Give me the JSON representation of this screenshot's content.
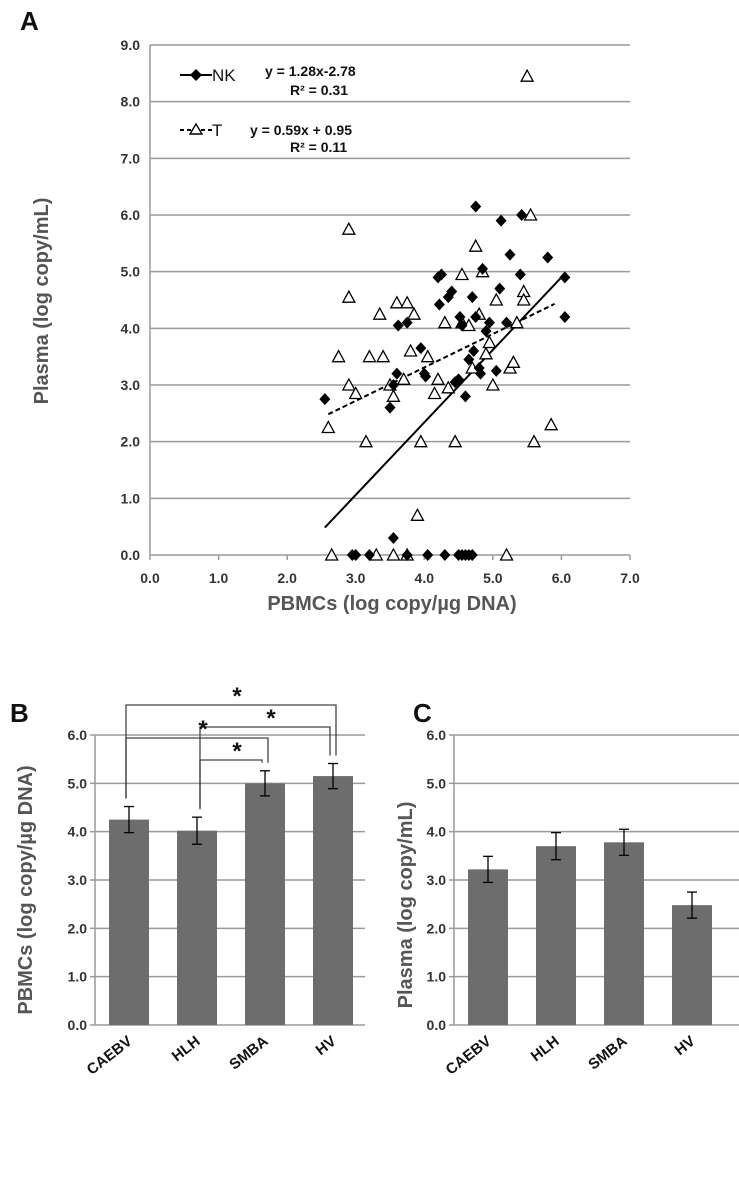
{
  "panels": {
    "a": "A",
    "b": "B",
    "c": "C"
  },
  "chart_data": [
    {
      "id": "A",
      "type": "scatter",
      "xlabel": "PBMCs (log copy/µg DNA)",
      "ylabel": "Plasma (log copy/mL)",
      "xlim": [
        0,
        7
      ],
      "ylim": [
        0,
        9
      ],
      "x_ticks": [
        "0.0",
        "1.0",
        "2.0",
        "3.0",
        "4.0",
        "5.0",
        "6.0",
        "7.0"
      ],
      "y_ticks": [
        "0.0",
        "1.0",
        "2.0",
        "3.0",
        "4.0",
        "5.0",
        "6.0",
        "7.0",
        "8.0",
        "9.0"
      ],
      "grid": "horizontal",
      "legend": "top-left",
      "series": [
        {
          "name": "NK",
          "marker": "diamond-filled",
          "color": "#000000",
          "equation": "y = 1.28x-2.78",
          "r2": "R² = 0.31",
          "trendline": {
            "slope": 1.28,
            "intercept": -2.78,
            "x_range": [
              2.55,
              6.05
            ],
            "style": "solid"
          },
          "points": [
            [
              2.55,
              2.75
            ],
            [
              3.5,
              2.6
            ],
            [
              3.55,
              3.0
            ],
            [
              3.6,
              3.2
            ],
            [
              3.62,
              4.05
            ],
            [
              3.75,
              4.1
            ],
            [
              3.95,
              3.65
            ],
            [
              4.0,
              3.2
            ],
            [
              4.02,
              3.15
            ],
            [
              4.2,
              4.9
            ],
            [
              4.22,
              4.42
            ],
            [
              4.25,
              4.95
            ],
            [
              4.35,
              4.55
            ],
            [
              4.4,
              4.65
            ],
            [
              4.45,
              3.05
            ],
            [
              4.5,
              3.1
            ],
            [
              4.52,
              4.2
            ],
            [
              4.55,
              4.05
            ],
            [
              4.6,
              2.8
            ],
            [
              4.65,
              3.45
            ],
            [
              4.7,
              4.55
            ],
            [
              4.72,
              3.6
            ],
            [
              4.75,
              4.2
            ],
            [
              4.75,
              6.15
            ],
            [
              4.8,
              3.3
            ],
            [
              4.82,
              3.2
            ],
            [
              4.85,
              5.05
            ],
            [
              4.9,
              3.95
            ],
            [
              4.95,
              4.1
            ],
            [
              5.05,
              3.25
            ],
            [
              5.1,
              4.7
            ],
            [
              5.12,
              5.9
            ],
            [
              5.2,
              4.1
            ],
            [
              5.25,
              5.3
            ],
            [
              5.4,
              4.95
            ],
            [
              5.42,
              6.0
            ],
            [
              5.8,
              5.25
            ],
            [
              6.05,
              4.9
            ],
            [
              6.05,
              4.2
            ],
            [
              3.55,
              0.3
            ],
            [
              2.95,
              0.0
            ],
            [
              3.0,
              0.0
            ],
            [
              3.2,
              0.0
            ],
            [
              3.75,
              0.0
            ],
            [
              4.05,
              0.0
            ],
            [
              4.3,
              0.0
            ],
            [
              4.5,
              0.0
            ],
            [
              4.55,
              0.0
            ],
            [
              4.6,
              0.0
            ],
            [
              4.65,
              0.0
            ],
            [
              4.7,
              0.0
            ]
          ]
        },
        {
          "name": "T",
          "marker": "triangle-open",
          "color": "#000000",
          "equation": "y = 0.59x + 0.95",
          "r2": "R² = 0.11",
          "trendline": {
            "slope": 0.59,
            "intercept": 0.95,
            "x_range": [
              2.6,
              5.9
            ],
            "style": "dashed"
          },
          "points": [
            [
              2.6,
              2.25
            ],
            [
              2.75,
              3.5
            ],
            [
              2.9,
              3.0
            ],
            [
              2.9,
              5.75
            ],
            [
              2.9,
              4.55
            ],
            [
              3.0,
              2.85
            ],
            [
              3.15,
              2.0
            ],
            [
              3.2,
              3.5
            ],
            [
              3.35,
              4.25
            ],
            [
              3.4,
              3.5
            ],
            [
              3.5,
              3.0
            ],
            [
              3.55,
              2.8
            ],
            [
              3.6,
              4.45
            ],
            [
              3.7,
              3.1
            ],
            [
              3.75,
              4.45
            ],
            [
              3.8,
              3.6
            ],
            [
              3.85,
              4.25
            ],
            [
              3.9,
              0.7
            ],
            [
              3.95,
              2.0
            ],
            [
              4.05,
              3.5
            ],
            [
              4.15,
              2.85
            ],
            [
              4.2,
              3.1
            ],
            [
              4.3,
              4.1
            ],
            [
              4.35,
              2.95
            ],
            [
              4.45,
              2.0
            ],
            [
              4.55,
              4.1
            ],
            [
              4.55,
              4.95
            ],
            [
              4.65,
              4.05
            ],
            [
              4.7,
              3.3
            ],
            [
              4.75,
              5.45
            ],
            [
              4.8,
              4.25
            ],
            [
              4.85,
              5.0
            ],
            [
              4.9,
              3.55
            ],
            [
              4.95,
              3.75
            ],
            [
              5.0,
              3.0
            ],
            [
              5.05,
              4.5
            ],
            [
              5.25,
              3.3
            ],
            [
              5.3,
              3.4
            ],
            [
              5.35,
              4.1
            ],
            [
              5.45,
              4.65
            ],
            [
              5.45,
              4.5
            ],
            [
              5.5,
              8.45
            ],
            [
              5.55,
              6.0
            ],
            [
              5.6,
              2.0
            ],
            [
              5.85,
              2.3
            ],
            [
              2.65,
              0.0
            ],
            [
              3.3,
              0.0
            ],
            [
              3.55,
              0.0
            ],
            [
              3.75,
              0.0
            ],
            [
              5.2,
              0.0
            ]
          ]
        }
      ]
    },
    {
      "id": "B",
      "type": "bar",
      "categories": [
        "CAEBV",
        "HLH",
        "SMBA",
        "HV"
      ],
      "values": [
        4.25,
        4.02,
        5.0,
        5.15
      ],
      "errors": [
        0.27,
        0.28,
        0.26,
        0.26
      ],
      "ylabel": "PBMCs (log copy/µg DNA)",
      "xlabel": "",
      "ylim": [
        0,
        6
      ],
      "y_ticks": [
        "0.0",
        "1.0",
        "2.0",
        "3.0",
        "4.0",
        "5.0",
        "6.0"
      ],
      "grid": "horizontal",
      "color": "#6d6d6d",
      "significance": [
        {
          "from": "CAEBV",
          "to": "HV",
          "label": "*"
        },
        {
          "from": "HLH",
          "to": "HV",
          "label": "*"
        },
        {
          "from": "CAEBV",
          "to": "SMBA",
          "label": "*"
        },
        {
          "from": "HLH",
          "to": "SMBA",
          "label": "*"
        }
      ]
    },
    {
      "id": "C",
      "type": "bar",
      "categories": [
        "CAEBV",
        "HLH",
        "SMBA",
        "HV"
      ],
      "values": [
        3.22,
        3.7,
        3.78,
        2.48
      ],
      "errors": [
        0.27,
        0.28,
        0.27,
        0.27
      ],
      "ylabel": "Plasma (log copy/mL)",
      "xlabel": "",
      "ylim": [
        0,
        6
      ],
      "y_ticks": [
        "0.0",
        "1.0",
        "2.0",
        "3.0",
        "4.0",
        "5.0",
        "6.0"
      ],
      "grid": "horizontal",
      "color": "#6d6d6d"
    }
  ]
}
